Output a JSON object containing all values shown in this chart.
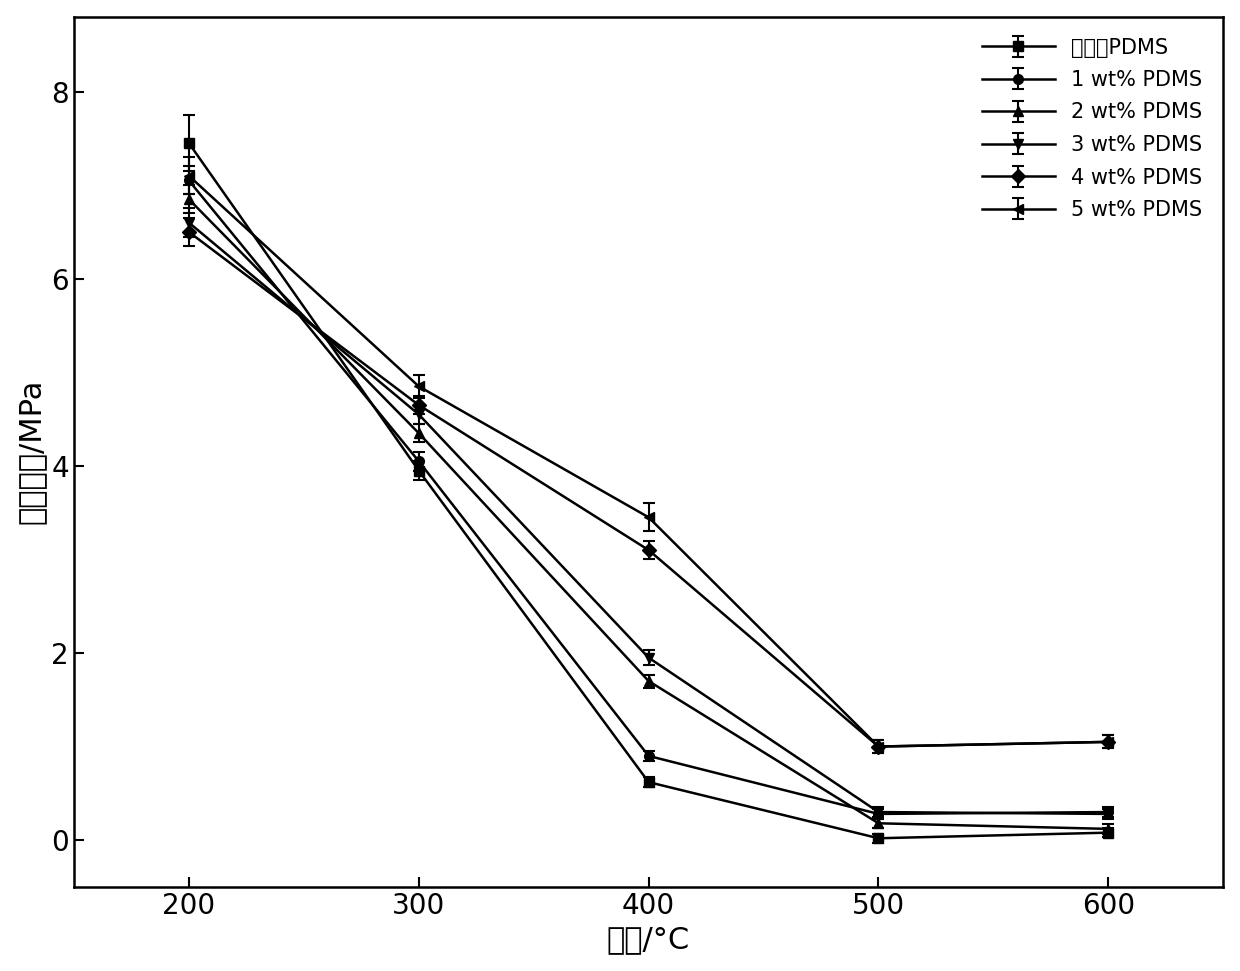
{
  "x": [
    200,
    300,
    400,
    500,
    600
  ],
  "series": [
    {
      "label": "无添加PDMS",
      "y": [
        7.45,
        3.95,
        0.62,
        0.02,
        0.08
      ],
      "yerr": [
        0.3,
        0.1,
        0.05,
        0.05,
        0.05
      ],
      "marker": "s"
    },
    {
      "label": "1 wt% PDMS",
      "y": [
        7.05,
        4.05,
        0.9,
        0.28,
        0.3
      ],
      "yerr": [
        0.15,
        0.1,
        0.05,
        0.05,
        0.05
      ],
      "marker": "o"
    },
    {
      "label": "2 wt% PDMS",
      "y": [
        6.85,
        4.35,
        1.7,
        0.18,
        0.12
      ],
      "yerr": [
        0.15,
        0.1,
        0.07,
        0.05,
        0.05
      ],
      "marker": "^"
    },
    {
      "label": "3 wt% PDMS",
      "y": [
        6.6,
        4.55,
        1.95,
        0.3,
        0.28
      ],
      "yerr": [
        0.15,
        0.1,
        0.08,
        0.05,
        0.05
      ],
      "marker": "v"
    },
    {
      "label": "4 wt% PDMS",
      "y": [
        6.5,
        4.65,
        3.1,
        1.0,
        1.05
      ],
      "yerr": [
        0.15,
        0.1,
        0.1,
        0.07,
        0.07
      ],
      "marker": "D"
    },
    {
      "label": "5 wt% PDMS",
      "y": [
        7.1,
        4.85,
        3.45,
        1.0,
        1.05
      ],
      "yerr": [
        0.2,
        0.12,
        0.15,
        0.07,
        0.07
      ],
      "marker": "<"
    }
  ],
  "xlabel": "温度/°C",
  "ylabel": "抗弯强度/MPa",
  "xlim": [
    150,
    650
  ],
  "ylim": [
    -0.5,
    8.8
  ],
  "xticks": [
    200,
    300,
    400,
    500,
    600
  ],
  "yticks": [
    0,
    2,
    4,
    6,
    8
  ],
  "color": "#000000",
  "linewidth": 1.8,
  "markersize": 7,
  "legend_fontsize": 15,
  "axis_fontsize": 22,
  "tick_fontsize": 20,
  "background_color": "#ffffff"
}
